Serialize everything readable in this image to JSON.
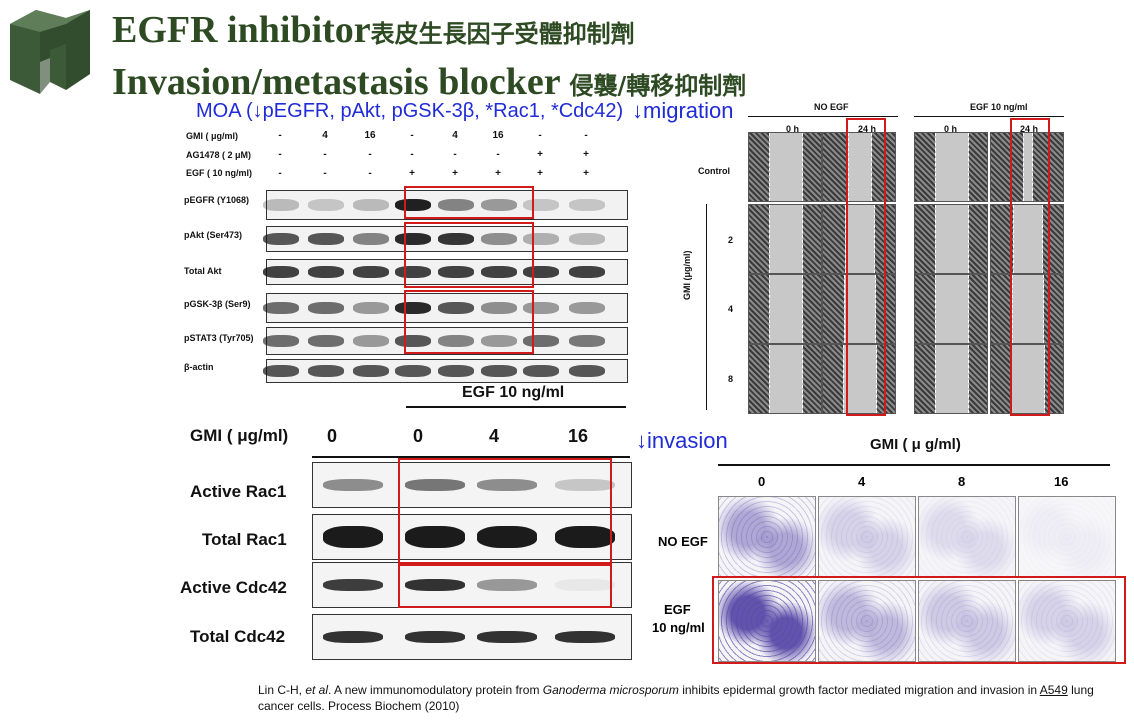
{
  "slide": {
    "title_line1": "EGFR inhibitor",
    "title_line1_cjk": "表皮生長因子受體抑制劑",
    "title_line2": "Invasion/metastasis blocker",
    "title_line2_cjk": "侵襲/轉移抑制劑",
    "moa": "MOA (↓pEGFR, pAkt, pGSK-3β, *Rac1, *Cdc42)",
    "migration_label": "↓migration",
    "invasion_label": "↓invasion",
    "citation_pre": "Lin C-H, ",
    "citation_etal": "et al",
    "citation_mid": ". A new immunomodulatory protein from ",
    "citation_species": "Ganoderma microsporum",
    "citation_post": " inhibits epidermal growth factor mediated migration and invasion in ",
    "citation_cell": "A549",
    "citation_end": " lung cancer cells. Process Biochem (2010)"
  },
  "western_blot_1": {
    "row_labels": [
      "GMI ( μg/ml)",
      "AG1478 ( 2 μM)",
      "EGF ( 10 ng/ml)"
    ],
    "gmi": [
      "-",
      "4",
      "16",
      "-",
      "4",
      "16",
      "-",
      "-"
    ],
    "ag1478": [
      "-",
      "-",
      "-",
      "-",
      "-",
      "-",
      "+",
      "+"
    ],
    "egf": [
      "-",
      "-",
      "-",
      "+",
      "+",
      "+",
      "+",
      "+"
    ],
    "bands": [
      "pEGFR (Y1068)",
      "pAkt  (Ser473)",
      "Total Akt",
      "pGSK-3β (Ser9)",
      "pSTAT3 (Tyr705)",
      "β-actin"
    ]
  },
  "western_blot_2": {
    "egf_header": "EGF 10 ng/ml",
    "gmi_label": "GMI ( μg/ml)",
    "gmi_values": [
      "0",
      "0",
      "4",
      "16"
    ],
    "bands": [
      "Active Rac1",
      "Total Rac1",
      "Active Cdc42",
      "Total Cdc42"
    ]
  },
  "migration_assay": {
    "group_no_egf": "NO EGF",
    "group_egf": "EGF 10 ng/ml",
    "time_0": "0 h",
    "time_24": "24 h",
    "row_control": "Control",
    "axis_label": "GMI (μg/ml)",
    "doses": [
      "2",
      "4",
      "8"
    ]
  },
  "invasion_assay": {
    "header": "GMI ( μ g/ml)",
    "doses": [
      "0",
      "4",
      "8",
      "16"
    ],
    "row_no_egf": "NO EGF",
    "row_egf_line1": "EGF",
    "row_egf_line2": "10 ng/ml"
  },
  "colors": {
    "title": "#2d4a22",
    "accent_blue": "#1f2bd6",
    "highlight_red": "#d11b1b",
    "logo": "#3c5a37",
    "stain_purple": "#5a4aa8"
  }
}
